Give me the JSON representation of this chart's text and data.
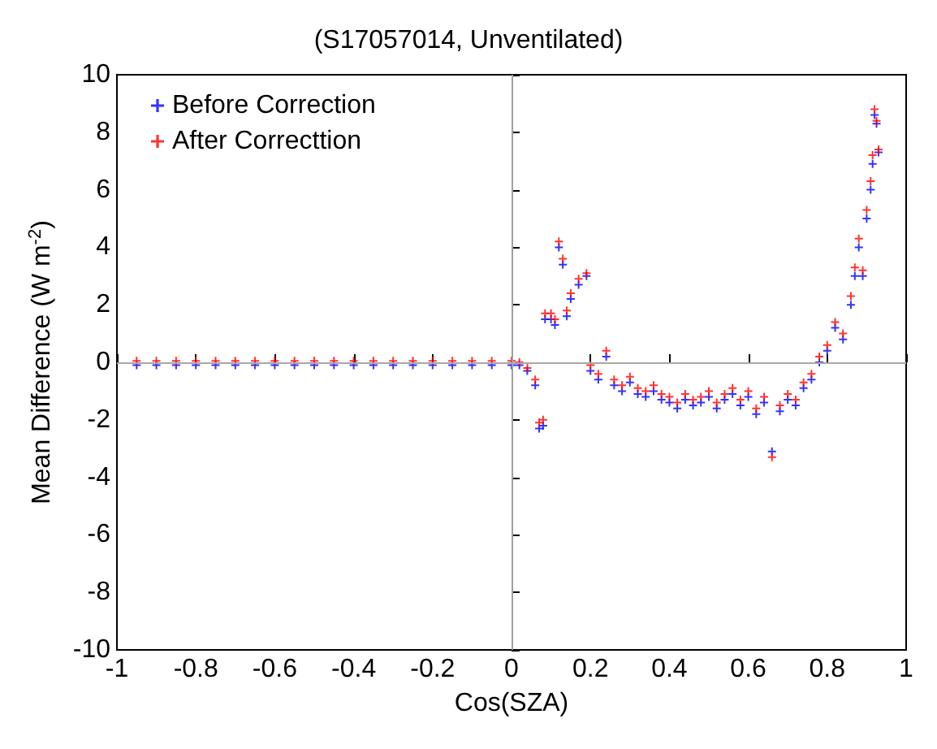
{
  "chart_data": {
    "type": "scatter",
    "title": "(S17057014, Unventilated)",
    "xlabel": "Cos(SZA)",
    "ylabel": "Mean Difference (W m$^{-2}$)",
    "x": [
      -0.95,
      -0.9,
      -0.85,
      -0.8,
      -0.75,
      -0.7,
      -0.65,
      -0.6,
      -0.55,
      -0.5,
      -0.45,
      -0.4,
      -0.35,
      -0.3,
      -0.25,
      -0.2,
      -0.15,
      -0.1,
      -0.05,
      0,
      0.02,
      0.04,
      0.06,
      0.07,
      0.08,
      0.085,
      0.1,
      0.11,
      0.12,
      0.13,
      0.14,
      0.15,
      0.17,
      0.19,
      0.2,
      0.22,
      0.24,
      0.26,
      0.28,
      0.3,
      0.32,
      0.34,
      0.36,
      0.38,
      0.4,
      0.42,
      0.44,
      0.46,
      0.48,
      0.5,
      0.52,
      0.54,
      0.56,
      0.58,
      0.6,
      0.62,
      0.64,
      0.66,
      0.68,
      0.7,
      0.72,
      0.74,
      0.76,
      0.78,
      0.8,
      0.82,
      0.84,
      0.86,
      0.87,
      0.88,
      0.89,
      0.9,
      0.91,
      0.915,
      0.92,
      0.925,
      0.93
    ],
    "series": [
      {
        "name": "Before Correction",
        "color": "#0000ff",
        "values": [
          -0.1,
          -0.1,
          -0.1,
          -0.1,
          -0.1,
          -0.1,
          -0.1,
          -0.1,
          -0.1,
          -0.1,
          -0.1,
          -0.1,
          -0.1,
          -0.1,
          -0.1,
          -0.1,
          -0.1,
          -0.1,
          -0.1,
          -0.1,
          -0.1,
          -0.3,
          -0.8,
          -2.3,
          -2.2,
          1.5,
          1.5,
          1.3,
          4.0,
          3.4,
          1.6,
          2.2,
          2.7,
          3.0,
          -0.3,
          -0.6,
          0.2,
          -0.8,
          -1.0,
          -0.7,
          -1.1,
          -1.2,
          -1.0,
          -1.3,
          -1.4,
          -1.6,
          -1.3,
          -1.5,
          -1.4,
          -1.2,
          -1.6,
          -1.3,
          -1.1,
          -1.5,
          -1.2,
          -1.8,
          -1.4,
          -3.1,
          -1.7,
          -1.3,
          -1.5,
          -0.9,
          -0.6,
          0.0,
          0.4,
          1.2,
          0.8,
          2.0,
          3.0,
          4.0,
          3.0,
          5.0,
          6.0,
          6.9,
          8.6,
          8.3,
          7.3
        ]
      },
      {
        "name": "After Correcttion",
        "color": "#ff0000",
        "values": [
          0.05,
          0.05,
          0.05,
          0.05,
          0.05,
          0.05,
          0.05,
          0.05,
          0.05,
          0.05,
          0.05,
          0.05,
          0.05,
          0.05,
          0.05,
          0.05,
          0.05,
          0.05,
          0.05,
          0.05,
          0,
          -0.2,
          -0.6,
          -2.1,
          -2.0,
          1.7,
          1.7,
          1.5,
          4.2,
          3.6,
          1.8,
          2.4,
          2.9,
          3.1,
          -0.1,
          -0.4,
          0.4,
          -0.6,
          -0.8,
          -0.5,
          -0.9,
          -1.0,
          -0.8,
          -1.1,
          -1.2,
          -1.4,
          -1.1,
          -1.3,
          -1.2,
          -1.0,
          -1.4,
          -1.1,
          -0.9,
          -1.3,
          -1.0,
          -1.6,
          -1.2,
          -3.3,
          -1.5,
          -1.1,
          -1.3,
          -0.7,
          -0.4,
          0.2,
          0.6,
          1.4,
          1.0,
          2.3,
          3.3,
          4.3,
          3.2,
          5.3,
          6.3,
          7.2,
          8.8,
          8.4,
          7.4
        ]
      }
    ],
    "xlim": [
      -1,
      1
    ],
    "xticks": [
      -1,
      -0.8,
      -0.6,
      -0.4,
      -0.2,
      0,
      0.2,
      0.4,
      0.6,
      0.8,
      1
    ],
    "ylim": [
      -10,
      10
    ],
    "yticks": [
      -10,
      -8,
      -6,
      -4,
      -2,
      0,
      2,
      4,
      6,
      8,
      10
    ],
    "ref_lines": [
      {
        "axis": "x",
        "value": 0,
        "color": "#a0a0a0"
      },
      {
        "axis": "y",
        "value": 0,
        "color": "#a8a8a8"
      }
    ],
    "legend": "top left",
    "marker": "cross",
    "grid": false
  }
}
